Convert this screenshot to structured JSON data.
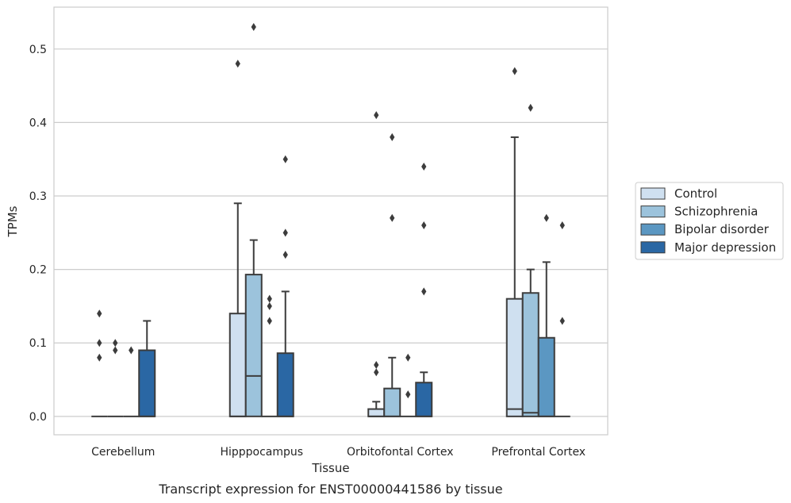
{
  "caption": "Transcript expression for ENST00000441586 by tissue",
  "chart_data": {
    "type": "box",
    "xlabel": "Tissue",
    "ylabel": "TPMs",
    "ylim": [
      -0.025,
      0.557
    ],
    "yticks": [
      0.0,
      0.1,
      0.2,
      0.3,
      0.4,
      0.5
    ],
    "ytick_labels": [
      "0.0",
      "0.1",
      "0.2",
      "0.3",
      "0.4",
      "0.5"
    ],
    "grid": "horizontal",
    "legend_position": "right",
    "categories": [
      "Cerebellum",
      "Hipppocampus",
      "Orbitofontal Cortex",
      "Prefrontal Cortex"
    ],
    "series": [
      {
        "name": "Control",
        "color": "#cfe0f0",
        "boxes": [
          {
            "q1": 0.0,
            "median": 0.0,
            "q3": 0.0,
            "whisker_low": 0.0,
            "whisker_high": 0.0,
            "outliers": [
              0.14,
              0.1,
              0.08
            ]
          },
          {
            "q1": 0.0,
            "median": 0.0,
            "q3": 0.14,
            "whisker_low": 0.0,
            "whisker_high": 0.29,
            "outliers": [
              0.48
            ]
          },
          {
            "q1": 0.0,
            "median": 0.0,
            "q3": 0.01,
            "whisker_low": 0.0,
            "whisker_high": 0.02,
            "outliers": [
              0.41,
              0.07,
              0.06
            ]
          },
          {
            "q1": 0.0,
            "median": 0.01,
            "q3": 0.16,
            "whisker_low": 0.0,
            "whisker_high": 0.38,
            "outliers": [
              0.47
            ]
          }
        ]
      },
      {
        "name": "Schizophrenia",
        "color": "#9cc3dc",
        "boxes": [
          {
            "q1": 0.0,
            "median": 0.0,
            "q3": 0.0,
            "whisker_low": 0.0,
            "whisker_high": 0.0,
            "outliers": [
              0.1,
              0.09
            ]
          },
          {
            "q1": 0.0,
            "median": 0.055,
            "q3": 0.193,
            "whisker_low": 0.0,
            "whisker_high": 0.24,
            "outliers": [
              0.53
            ]
          },
          {
            "q1": 0.0,
            "median": 0.0,
            "q3": 0.038,
            "whisker_low": 0.0,
            "whisker_high": 0.08,
            "outliers": [
              0.38,
              0.27
            ]
          },
          {
            "q1": 0.0,
            "median": 0.005,
            "q3": 0.168,
            "whisker_low": 0.0,
            "whisker_high": 0.2,
            "outliers": [
              0.42
            ]
          }
        ]
      },
      {
        "name": "Bipolar disorder",
        "color": "#5b97c2",
        "boxes": [
          {
            "q1": 0.0,
            "median": 0.0,
            "q3": 0.0,
            "whisker_low": 0.0,
            "whisker_high": 0.0,
            "outliers": [
              0.09
            ]
          },
          {
            "q1": 0.0,
            "median": 0.0,
            "q3": 0.0,
            "whisker_low": 0.0,
            "whisker_high": 0.0,
            "outliers": [
              0.16,
              0.15,
              0.13
            ]
          },
          {
            "q1": 0.0,
            "median": 0.0,
            "q3": 0.0,
            "whisker_low": 0.0,
            "whisker_high": 0.0,
            "outliers": [
              0.08,
              0.03
            ]
          },
          {
            "q1": 0.0,
            "median": 0.0,
            "q3": 0.107,
            "whisker_low": 0.0,
            "whisker_high": 0.21,
            "outliers": [
              0.27
            ]
          }
        ]
      },
      {
        "name": "Major depression",
        "color": "#2a67a4",
        "boxes": [
          {
            "q1": 0.0,
            "median": 0.0,
            "q3": 0.09,
            "whisker_low": 0.0,
            "whisker_high": 0.13,
            "outliers": []
          },
          {
            "q1": 0.0,
            "median": 0.0,
            "q3": 0.086,
            "whisker_low": 0.0,
            "whisker_high": 0.17,
            "outliers": [
              0.35,
              0.25,
              0.22
            ]
          },
          {
            "q1": 0.0,
            "median": 0.0,
            "q3": 0.046,
            "whisker_low": 0.0,
            "whisker_high": 0.06,
            "outliers": [
              0.34,
              0.26,
              0.17
            ]
          },
          {
            "q1": 0.0,
            "median": 0.0,
            "q3": 0.0,
            "whisker_low": 0.0,
            "whisker_high": 0.0,
            "outliers": [
              0.26,
              0.13
            ]
          }
        ]
      }
    ]
  }
}
